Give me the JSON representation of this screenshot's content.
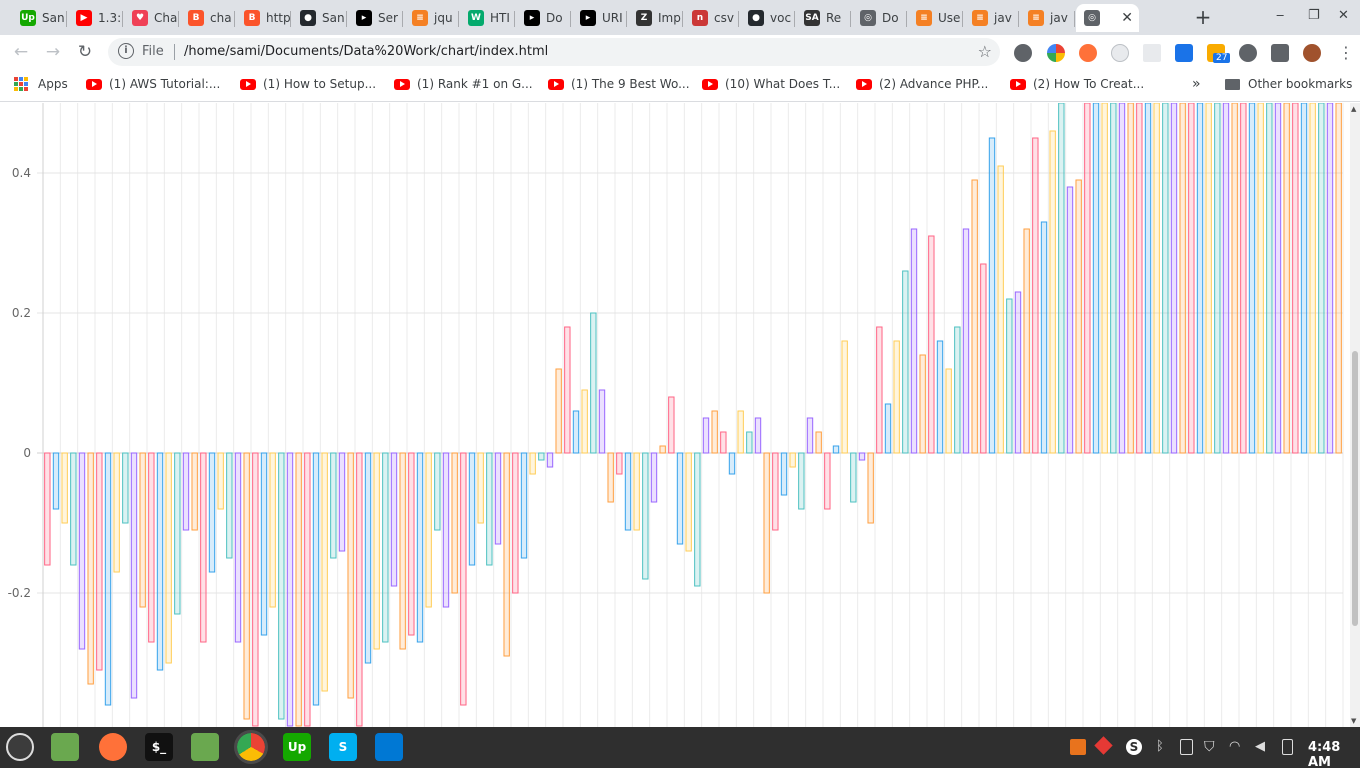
{
  "browser": {
    "tabs": [
      {
        "label": "San",
        "icon": "upwork-icon",
        "color": "#14a800",
        "glyph": "Up"
      },
      {
        "label": "1.3:",
        "icon": "youtube-icon",
        "color": "#ff0000",
        "glyph": "▶"
      },
      {
        "label": "Cha",
        "icon": "pocket-icon",
        "color": "#ef4056",
        "glyph": "♥"
      },
      {
        "label": "cha",
        "icon": "brave-icon",
        "color": "#fb542b",
        "glyph": "B"
      },
      {
        "label": "http",
        "icon": "brave-icon",
        "color": "#fb542b",
        "glyph": "B"
      },
      {
        "label": "San",
        "icon": "github-icon",
        "color": "#24292e",
        "glyph": "●"
      },
      {
        "label": "Ser",
        "icon": "dev-icon",
        "color": "#000000",
        "glyph": "▸"
      },
      {
        "label": "jqu",
        "icon": "stackoverflow-icon",
        "color": "#f48024",
        "glyph": "≡"
      },
      {
        "label": "HTI",
        "icon": "w3schools-icon",
        "color": "#04aa6d",
        "glyph": "W"
      },
      {
        "label": "Do",
        "icon": "dev-icon",
        "color": "#000000",
        "glyph": "▸"
      },
      {
        "label": "URI",
        "icon": "dev-icon",
        "color": "#000000",
        "glyph": "▸"
      },
      {
        "label": "Imp",
        "icon": "zeal-icon",
        "color": "#333333",
        "glyph": "Z"
      },
      {
        "label": "csv",
        "icon": "npm-icon",
        "color": "#cb3837",
        "glyph": "n"
      },
      {
        "label": "voc",
        "icon": "github-icon",
        "color": "#24292e",
        "glyph": "●"
      },
      {
        "label": "Re",
        "icon": "sitepoint-icon",
        "color": "#333333",
        "glyph": "SA"
      },
      {
        "label": "Do",
        "icon": "globe-icon",
        "color": "#5f6368",
        "glyph": "◎"
      },
      {
        "label": "Use",
        "icon": "stackoverflow-icon",
        "color": "#f48024",
        "glyph": "≡"
      },
      {
        "label": "jav",
        "icon": "stackoverflow-icon",
        "color": "#f48024",
        "glyph": "≡"
      },
      {
        "label": "jav",
        "icon": "stackoverflow-icon",
        "color": "#f48024",
        "glyph": "≡"
      },
      {
        "label": "",
        "icon": "globe-icon",
        "color": "#5f6368",
        "glyph": "◎",
        "active": true
      }
    ],
    "new_tab": "+",
    "window_controls": {
      "minimize": "‒",
      "maximize": "❐",
      "close": "✕"
    },
    "nav": {
      "back": "←",
      "forward": "→",
      "reload": "↻"
    },
    "address": {
      "scheme_label": "File",
      "url": "/home/sami/Documents/Data%20Work/chart/index.html"
    },
    "extension_badge": "27",
    "bookmarks": {
      "apps_label": "Apps",
      "items": [
        "(1) AWS Tutorial:...",
        "(1) How to Setup...",
        "(1) Rank #1 on G...",
        "(1) The 9 Best Wo...",
        "(10) What Does T...",
        "(2) Advance PHP...",
        "(2) How To Creat..."
      ],
      "overflow": "»",
      "other_label": "Other bookmarks"
    }
  },
  "chart_data": {
    "type": "bar",
    "ylim": [
      -0.39,
      0.5
    ],
    "y_ticks": [
      "0.4",
      "0.2",
      "0",
      "-0.2"
    ],
    "grid": true,
    "colors": [
      "#ff6384",
      "#36a2eb",
      "#ffcd56",
      "#4bc0c0",
      "#9966ff",
      "#ff9f40"
    ],
    "values": [
      -0.16,
      -0.08,
      -0.1,
      -0.16,
      -0.28,
      -0.33,
      -0.31,
      -0.36,
      -0.17,
      -0.1,
      -0.35,
      -0.22,
      -0.27,
      -0.31,
      -0.3,
      -0.23,
      -0.11,
      -0.11,
      -0.27,
      -0.17,
      -0.08,
      -0.15,
      -0.27,
      -0.38,
      -0.39,
      -0.26,
      -0.22,
      -0.38,
      -0.39,
      -0.39,
      -0.39,
      -0.36,
      -0.34,
      -0.15,
      -0.14,
      -0.35,
      -0.39,
      -0.3,
      -0.28,
      -0.27,
      -0.19,
      -0.28,
      -0.26,
      -0.27,
      -0.22,
      -0.11,
      -0.22,
      -0.2,
      -0.36,
      -0.16,
      -0.1,
      -0.16,
      -0.13,
      -0.29,
      -0.2,
      -0.15,
      -0.03,
      -0.01,
      -0.02,
      0.12,
      0.18,
      0.06,
      0.09,
      0.2,
      0.09,
      -0.07,
      -0.03,
      -0.11,
      -0.11,
      -0.18,
      -0.07,
      0.01,
      0.08,
      -0.13,
      -0.14,
      -0.19,
      0.05,
      0.06,
      0.03,
      -0.03,
      0.06,
      0.03,
      0.05,
      -0.2,
      -0.11,
      -0.06,
      -0.02,
      -0.08,
      0.05,
      0.03,
      -0.08,
      0.01,
      0.16,
      -0.07,
      -0.01,
      -0.1,
      0.18,
      0.07,
      0.16,
      0.26,
      0.32,
      0.14,
      0.31,
      0.16,
      0.12,
      0.18,
      0.32,
      0.39,
      0.27,
      0.45,
      0.41,
      0.22,
      0.23,
      0.32,
      0.45,
      0.33,
      0.46,
      0.5,
      0.38,
      0.39,
      0.5,
      0.5,
      0.5,
      0.5,
      0.5,
      0.5,
      0.5,
      0.5,
      0.5,
      0.5,
      0.5,
      0.5,
      0.5,
      0.5,
      0.5,
      0.5,
      0.5,
      0.5,
      0.5,
      0.5,
      0.5,
      0.5,
      0.5,
      0.5,
      0.5,
      0.5,
      0.5,
      0.5,
      0.5,
      0.5
    ]
  },
  "taskbar": {
    "apps": [
      {
        "name": "menu-icon",
        "color": "#86be43"
      },
      {
        "name": "files-icon",
        "color": "#6aa84f"
      },
      {
        "name": "firefox-icon",
        "color": "#ff7139"
      },
      {
        "name": "terminal-icon",
        "color": "#111111"
      },
      {
        "name": "folder-icon",
        "color": "#6aa84f"
      },
      {
        "name": "chrome-icon",
        "color": "#4285f4"
      },
      {
        "name": "upwork-icon",
        "color": "#14a800"
      },
      {
        "name": "skype-icon",
        "color": "#00aff0"
      },
      {
        "name": "vscode-icon",
        "color": "#0078d4"
      }
    ],
    "terminal_glyph": "$_",
    "upwork_glyph": "Up",
    "skype_glyph": "S",
    "clock": "4:48 AM"
  }
}
